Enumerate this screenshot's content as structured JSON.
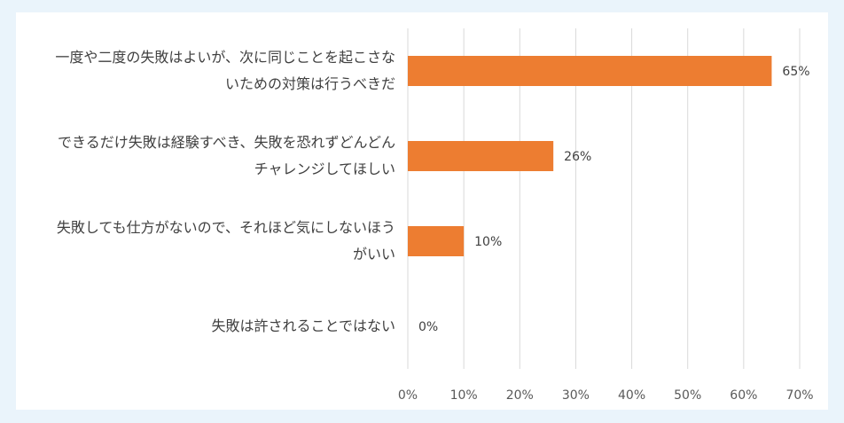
{
  "chart_data": {
    "type": "bar",
    "orientation": "horizontal",
    "categories": [
      [
        "一度や二度の失敗はよいが、次に同じことを起こさな",
        "いための対策は行うべきだ"
      ],
      [
        "できるだけ失敗は経験すべき、失敗を恐れずどんどん",
        "チャレンジしてほしい"
      ],
      [
        "失敗しても仕方がないので、それほど気にしないほう",
        "がいい"
      ],
      [
        "失敗は許されることではない"
      ]
    ],
    "values": [
      65,
      26,
      10,
      0
    ],
    "data_labels": [
      "65%",
      "26%",
      "10%",
      "0%"
    ],
    "xlim": [
      0,
      70
    ],
    "x_ticks": [
      0,
      10,
      20,
      30,
      40,
      50,
      60,
      70
    ],
    "x_tick_labels": [
      "0%",
      "10%",
      "20%",
      "30%",
      "40%",
      "50%",
      "60%",
      "70%"
    ],
    "bar_color": "#ed7d31",
    "grid": true,
    "legend": "none"
  }
}
